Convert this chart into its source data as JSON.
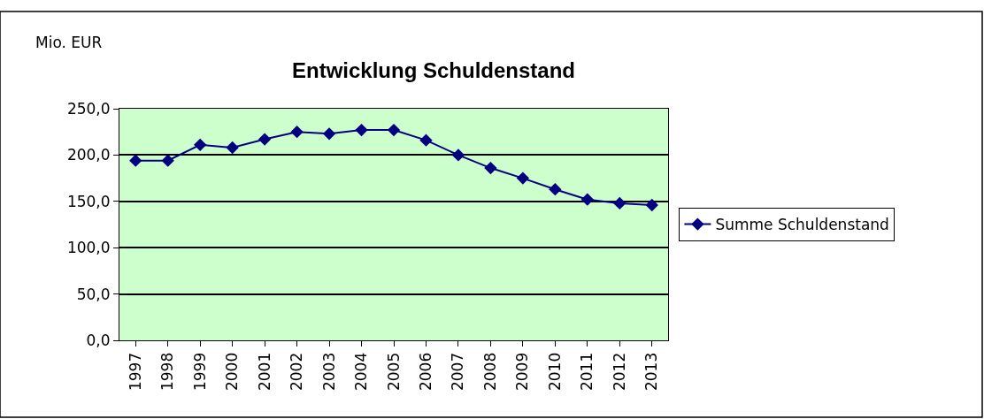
{
  "chart_data": {
    "type": "line",
    "title": "Entwicklung Schuldenstand",
    "ylabel": "Mio. EUR",
    "categories": [
      "1997",
      "1998",
      "1999",
      "2000",
      "2001",
      "2002",
      "2003",
      "2004",
      "2005",
      "2006",
      "2007",
      "2008",
      "2009",
      "2010",
      "2011",
      "2012",
      "2013"
    ],
    "series": [
      {
        "name": "Summe Schuldenstand",
        "color": "#000080",
        "values": [
          194,
          194,
          211,
          208,
          217,
          225,
          223,
          227,
          227,
          216,
          200,
          186,
          175,
          163,
          152,
          148,
          146
        ]
      }
    ],
    "ylim": [
      0,
      250
    ],
    "yticks": [
      {
        "value": 0,
        "label": "0,0"
      },
      {
        "value": 50,
        "label": "50,0"
      },
      {
        "value": 100,
        "label": "100,0"
      },
      {
        "value": 150,
        "label": "150,0"
      },
      {
        "value": 200,
        "label": "200,0"
      },
      {
        "value": 250,
        "label": "250,0"
      }
    ],
    "grid": "y",
    "legend": "right",
    "marker": "diamond",
    "line_style": "solid"
  }
}
